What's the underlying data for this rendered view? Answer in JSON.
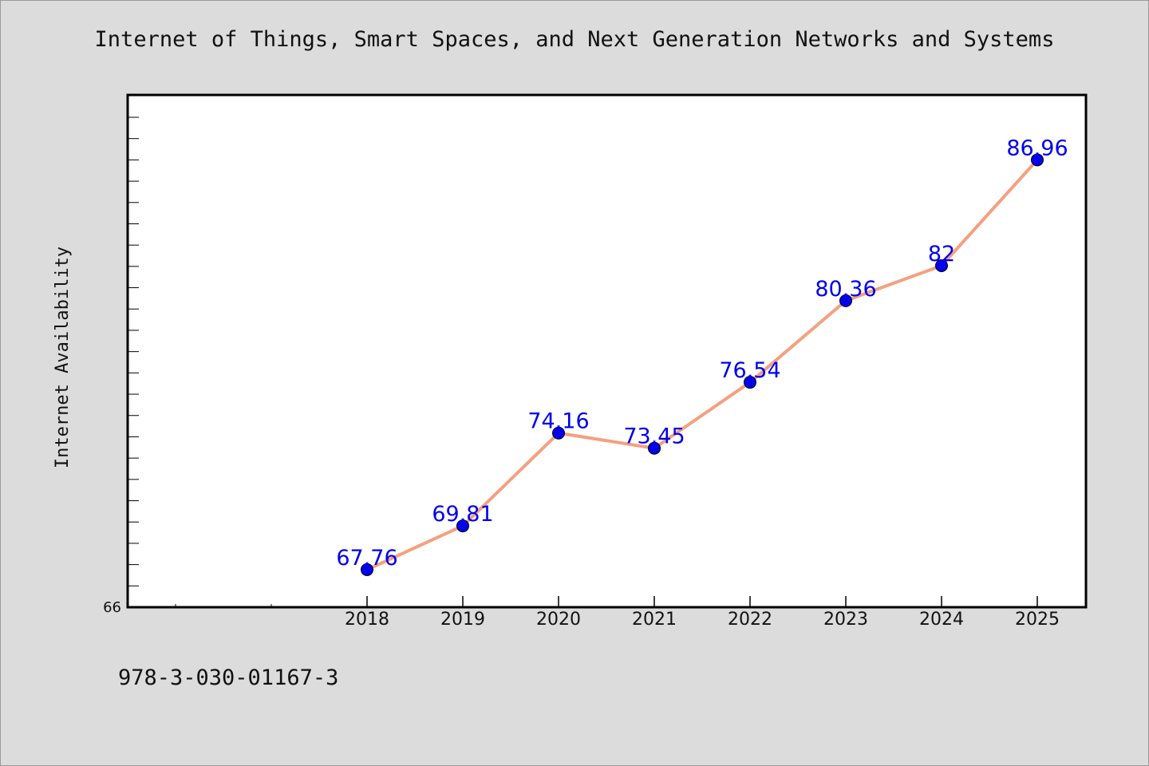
{
  "chart_data": {
    "type": "line",
    "title": "Internet of Things, Smart Spaces, and Next Generation Networks and Systems",
    "xlabel": "",
    "ylabel": "Internet Availability",
    "categories": [
      "2018",
      "2019",
      "2020",
      "2021",
      "2022",
      "2023",
      "2024",
      "2025"
    ],
    "series": [
      {
        "values": [
          67.76,
          69.81,
          74.16,
          73.45,
          76.54,
          80.36,
          82,
          86.96
        ],
        "labels": [
          "67.76",
          "69.81",
          "74.16",
          "73.45",
          "76.54",
          "80.36",
          "82",
          "86.96"
        ]
      }
    ],
    "ylim": [
      66,
      90
    ],
    "y_tick_labels": [
      "66"
    ],
    "grid": false,
    "legend": "none",
    "colors": {
      "line": "#f4a080",
      "marker": "#0000ee",
      "label": "#0000ee",
      "background": "#dcdcdc",
      "plot_background": "#ffffff"
    }
  },
  "footnote": "978-3-030-01167-3"
}
